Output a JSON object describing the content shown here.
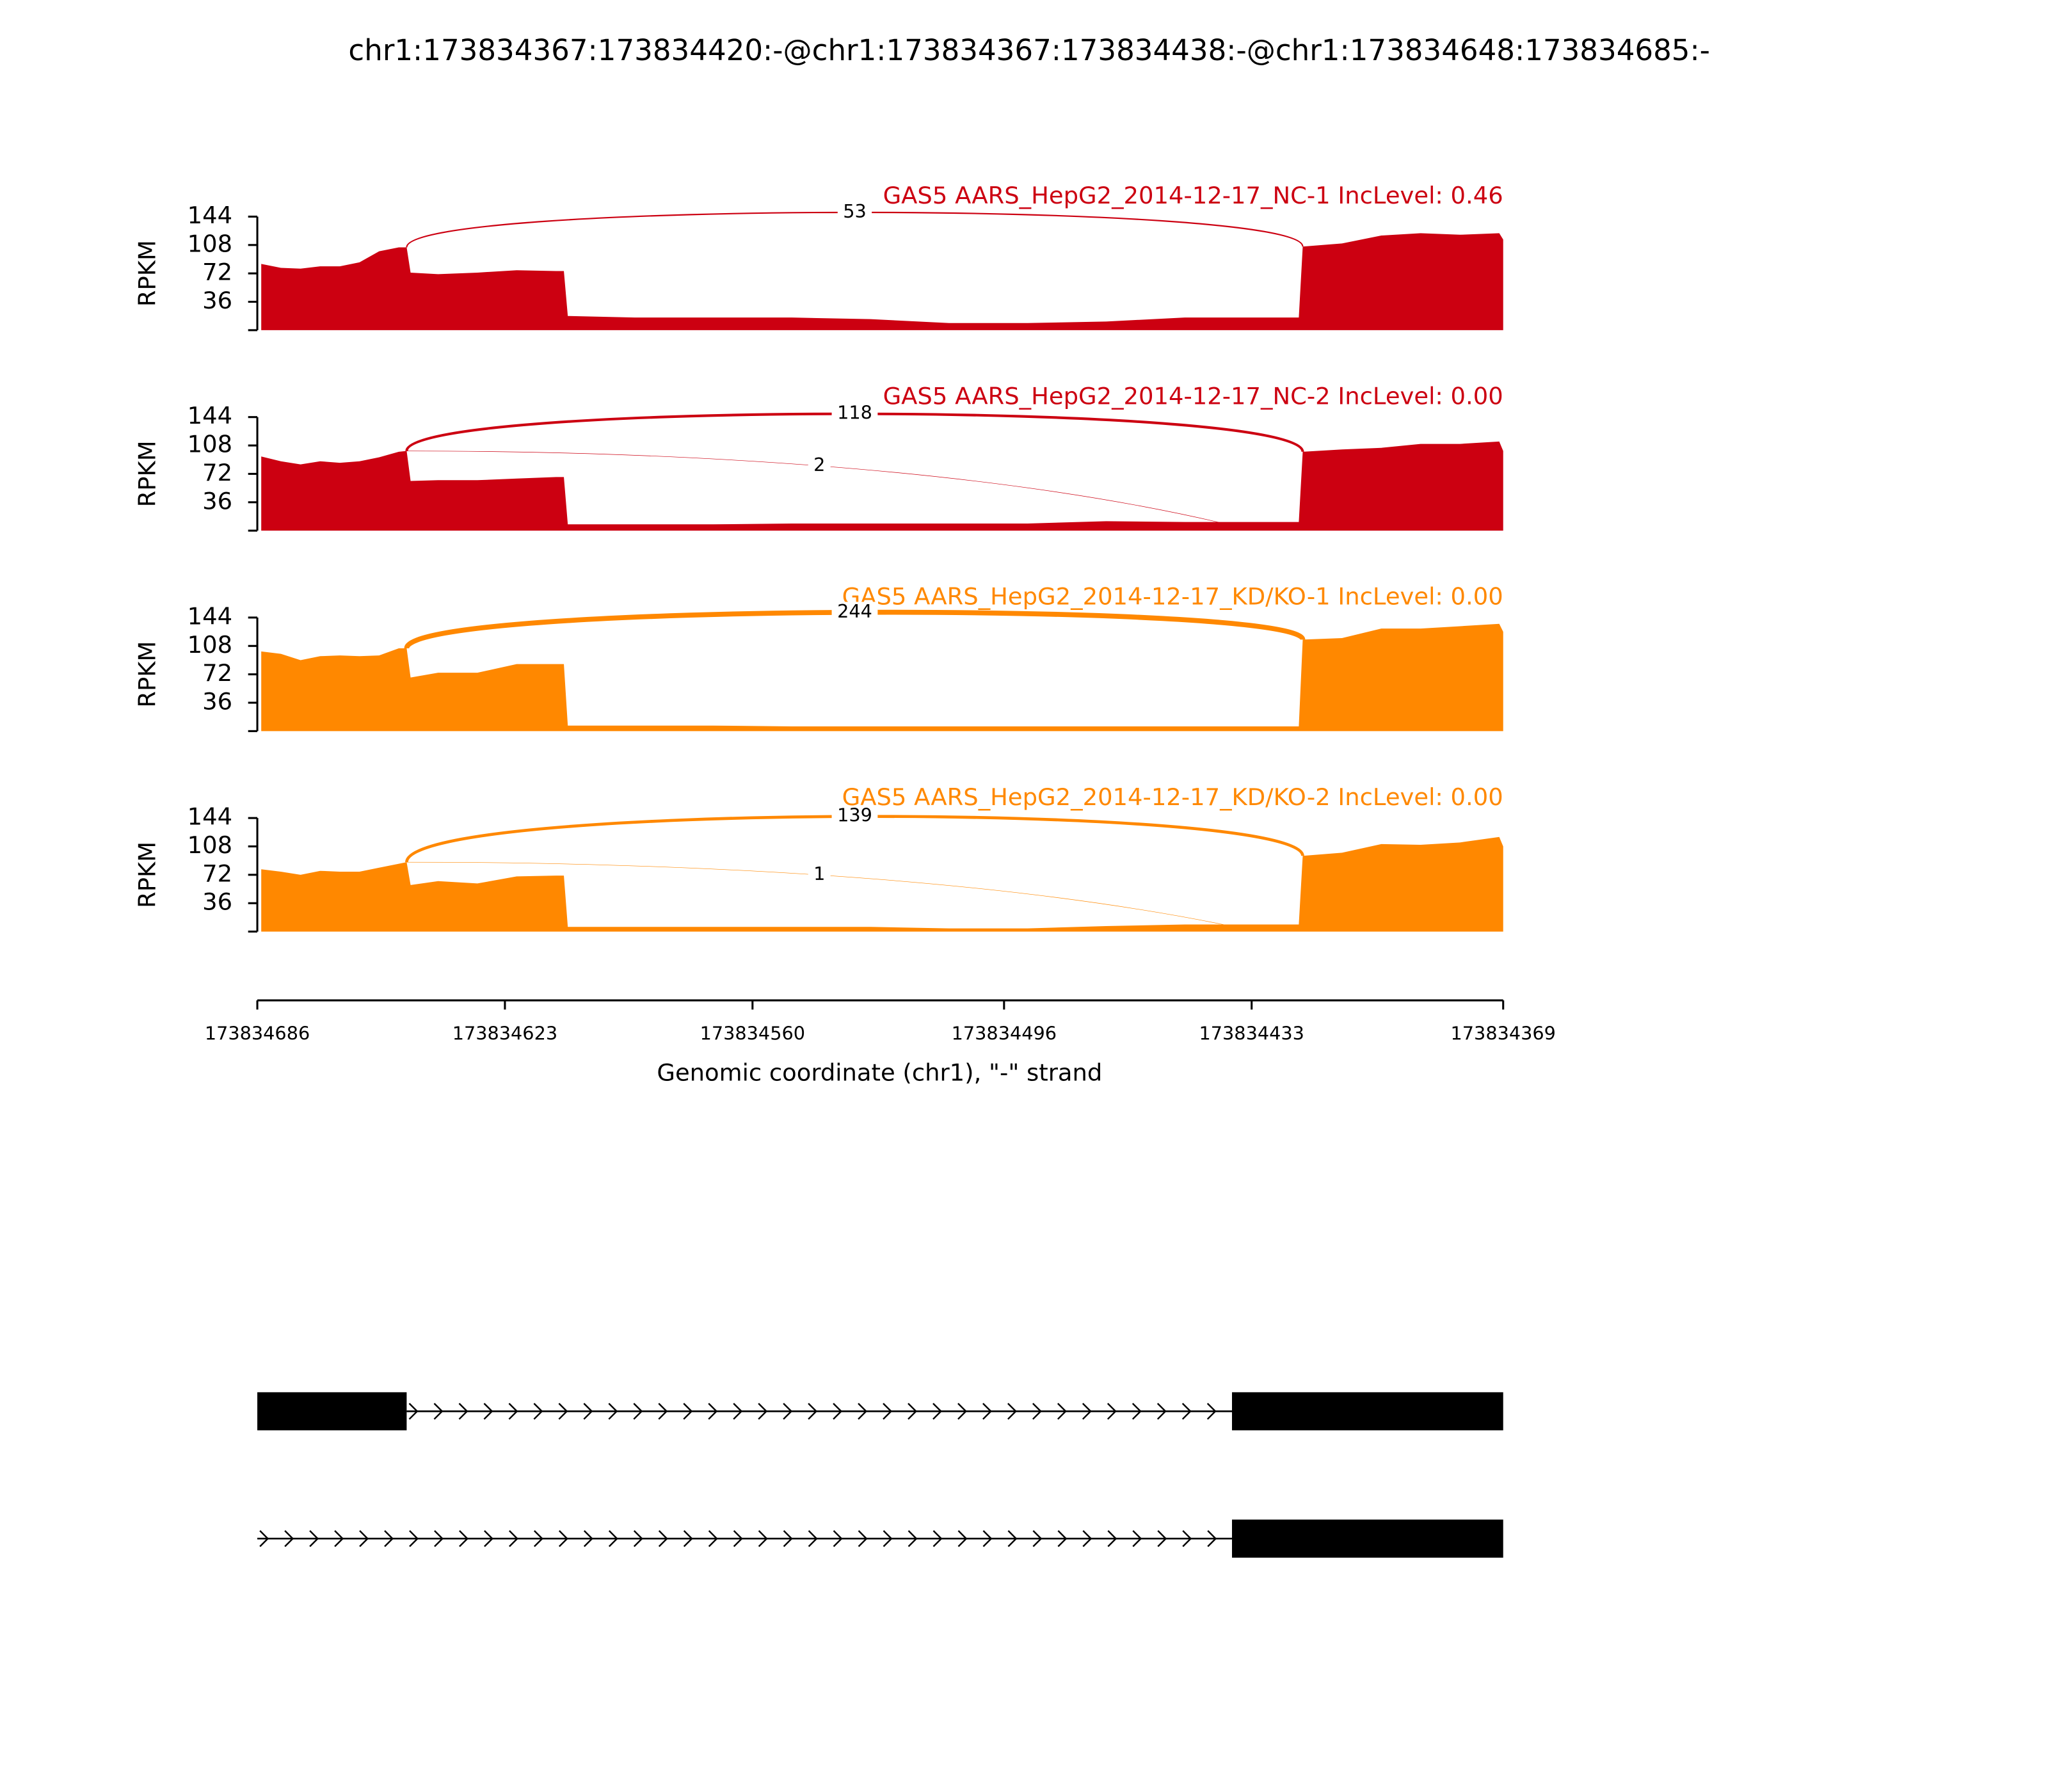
{
  "chart_data": {
    "type": "sashimi",
    "title": "chr1:173834367:173834420:-@chr1:173834367:173834438:-@chr1:173834648:173834685:-",
    "xlabel": "Genomic coordinate (chr1), \"-\" strand",
    "xlim": [
      173834686,
      173834369
    ],
    "xticks": [
      173834686,
      173834623,
      173834560,
      173834496,
      173834433,
      173834369
    ],
    "x": [
      173834685,
      173834680,
      173834675,
      173834670,
      173834665,
      173834660,
      173834655,
      173834650,
      173834648,
      173834647,
      173834640,
      173834630,
      173834620,
      173834610,
      173834608,
      173834607,
      173834590,
      173834570,
      173834550,
      173834530,
      173834510,
      173834490,
      173834470,
      173834450,
      173834430,
      173834421,
      173834420,
      173834410,
      173834400,
      173834390,
      173834380,
      173834370,
      173834369
    ],
    "panels": [
      {
        "label": "GAS5 AARS_HepG2_2014-12-17_NC-1 IncLevel: 0.46",
        "color": "#cc0011",
        "ylabel": "RPKM",
        "ylim": [
          0,
          144
        ],
        "yticks": [
          36,
          72,
          108,
          144
        ],
        "values": [
          84,
          79,
          78,
          81,
          81,
          86,
          100,
          105,
          105,
          73,
          71,
          73,
          76,
          75,
          75,
          18,
          16,
          16,
          16,
          14,
          9,
          9,
          11,
          16,
          16,
          16,
          106,
          110,
          120,
          123,
          121,
          123,
          115
        ],
        "junctions": [
          {
            "value": 53,
            "start": 173834648,
            "end": 173834420
          }
        ]
      },
      {
        "label": "GAS5 AARS_HepG2_2014-12-17_NC-2 IncLevel: 0.00",
        "color": "#cc0011",
        "ylabel": "RPKM",
        "ylim": [
          0,
          144
        ],
        "yticks": [
          36,
          72,
          108,
          144
        ],
        "values": [
          94,
          88,
          84,
          88,
          86,
          88,
          93,
          100,
          101,
          63,
          64,
          64,
          66,
          68,
          68,
          8,
          8,
          8,
          9,
          9,
          9,
          9,
          12,
          11,
          11,
          11,
          100,
          103,
          105,
          110,
          110,
          113,
          101
        ],
        "junctions": [
          {
            "value": 118,
            "start": 173834648,
            "end": 173834420
          },
          {
            "value": 2,
            "start": 173834648,
            "end": 173834438
          }
        ]
      },
      {
        "label": "GAS5 AARS_HepG2_2014-12-17_KD/KO-1 IncLevel: 0.00",
        "color": "#ff8800",
        "ylabel": "RPKM",
        "ylim": [
          0,
          144
        ],
        "yticks": [
          36,
          72,
          108,
          144
        ],
        "values": [
          101,
          98,
          90,
          95,
          96,
          95,
          96,
          105,
          105,
          68,
          74,
          74,
          85,
          85,
          85,
          7,
          7,
          7,
          6,
          6,
          6,
          6,
          6,
          6,
          6,
          6,
          116,
          118,
          130,
          130,
          133,
          136,
          126
        ],
        "junctions": [
          {
            "value": 244,
            "start": 173834648,
            "end": 173834420
          }
        ]
      },
      {
        "label": "GAS5 AARS_HepG2_2014-12-17_KD/KO-2 IncLevel: 0.00",
        "color": "#ff8800",
        "ylabel": "RPKM",
        "ylim": [
          0,
          144
        ],
        "yticks": [
          36,
          72,
          108,
          144
        ],
        "values": [
          79,
          76,
          72,
          77,
          76,
          76,
          81,
          86,
          88,
          59,
          64,
          61,
          70,
          71,
          71,
          6,
          6,
          6,
          6,
          6,
          4,
          4,
          7,
          9,
          9,
          9,
          96,
          100,
          111,
          110,
          113,
          120,
          108
        ],
        "junctions": [
          {
            "value": 139,
            "start": 173834648,
            "end": 173834420
          },
          {
            "value": 1,
            "start": 173834648,
            "end": 173834438
          }
        ]
      }
    ],
    "transcripts": [
      {
        "exons": [
          [
            173834686,
            173834648
          ],
          [
            173834438,
            173834369
          ]
        ]
      },
      {
        "exons": [
          [
            173834438,
            173834369
          ]
        ]
      }
    ]
  }
}
